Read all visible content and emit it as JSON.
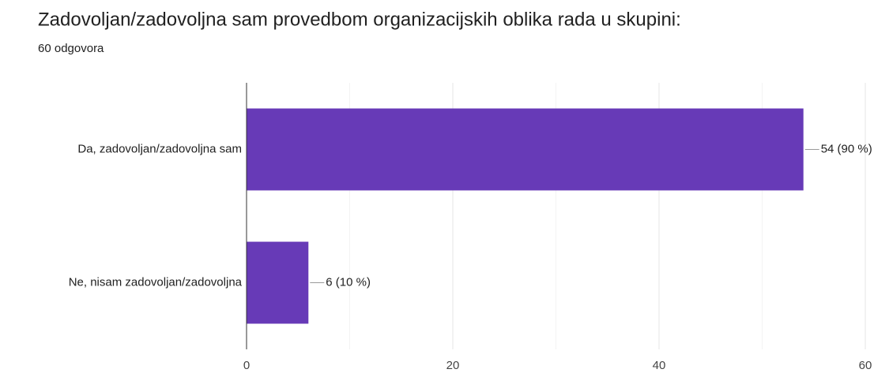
{
  "chart_data": {
    "type": "bar",
    "orientation": "horizontal",
    "title": "Zadovoljan/zadovoljna sam provedbom organizacijskih oblika rada u skupini:",
    "subtitle": "60 odgovora",
    "categories": [
      "Da, zadovoljan/zadovoljna sam",
      "Ne, nisam zadovoljan/zadovoljna"
    ],
    "values": [
      54,
      6
    ],
    "value_labels": [
      "54 (90 %)",
      "6 (10 %)"
    ],
    "color": "#673ab7",
    "xlim": [
      0,
      60
    ],
    "xticks": [
      0,
      20,
      40,
      60
    ],
    "minor_xticks": [
      10,
      30,
      50
    ],
    "grid": true
  }
}
